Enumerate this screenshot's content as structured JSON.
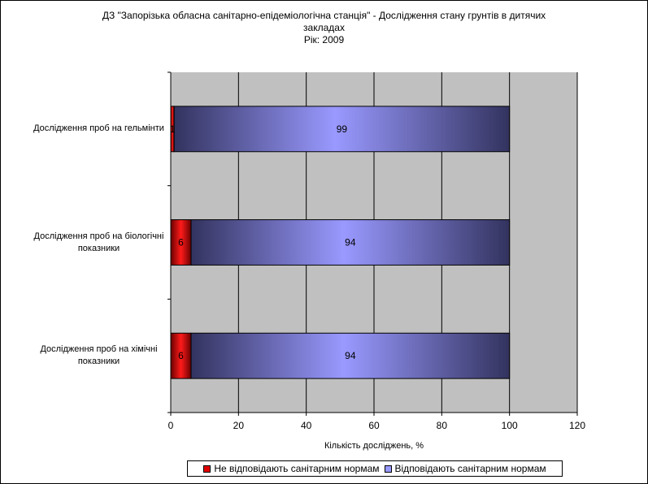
{
  "chart_data": {
    "type": "bar",
    "orientation": "horizontal",
    "stacked": true,
    "title": [
      "ДЗ \"Запорізька обласна санітарно-епідеміологічна станція\" -  Дослідження стану грунтів в дитячих",
      "закладах",
      "Рік: 2009"
    ],
    "categories": [
      [
        "Дослідження проб на гельмінти"
      ],
      [
        "Дослідження проб на біологічні",
        "показники"
      ],
      [
        "Дослідження проб на хімічні",
        "показники"
      ]
    ],
    "series": [
      {
        "name": "Не відповідають санітарним нормам",
        "values": [
          1,
          6,
          6
        ],
        "labels": [
          "1",
          "6",
          "6"
        ],
        "color": "#e00000"
      },
      {
        "name": "Відповідають санітарним нормам",
        "values": [
          99,
          94,
          94
        ],
        "labels": [
          "99",
          "94",
          "94"
        ],
        "color": "#9999ff"
      }
    ],
    "xlabel": "Кількість досліджень, %",
    "xlim": [
      0,
      120
    ],
    "xticks": [
      "0",
      "20",
      "40",
      "60",
      "80",
      "100",
      "120"
    ],
    "grid": true,
    "plot_background": "#c0c0c0",
    "legend_position": "bottom"
  }
}
